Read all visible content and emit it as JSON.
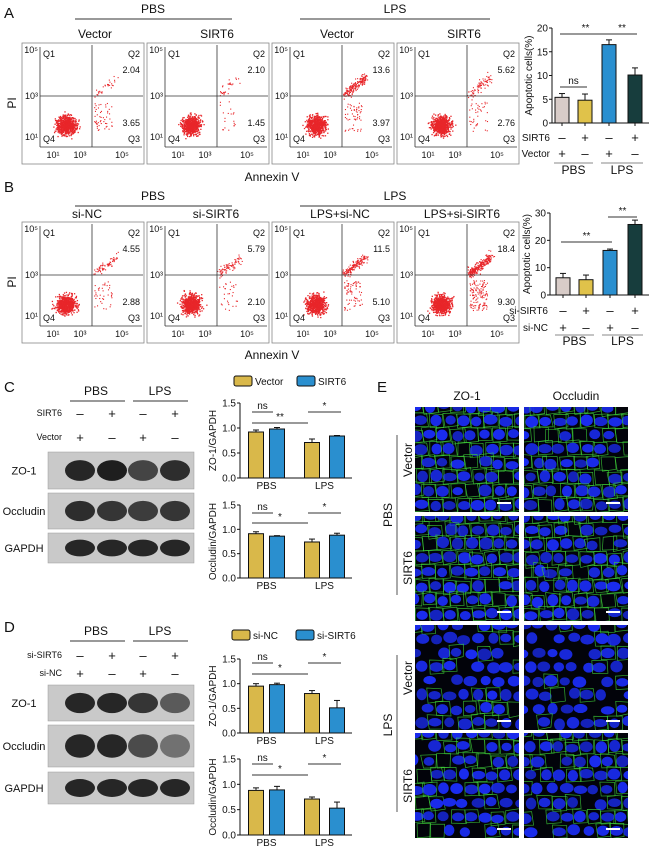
{
  "panel_labels": [
    "A",
    "B",
    "C",
    "D",
    "E"
  ],
  "panel_a": {
    "groups": [
      "PBS",
      "LPS"
    ],
    "conditions": [
      "Vector",
      "SIRT6",
      "Vector",
      "SIRT6"
    ],
    "y_label": "PI",
    "x_label": "Annexin V",
    "quadrant_labels": [
      "Q1",
      "Q2",
      "Q3",
      "Q4"
    ],
    "x_ticks": [
      "10¹",
      "10³",
      "10⁵"
    ],
    "y_ticks": [
      "10⁵",
      "10³",
      "10¹"
    ],
    "plots": [
      {
        "q2": "2.04",
        "q3": "3.65"
      },
      {
        "q2": "2.10",
        "q3": "1.45"
      },
      {
        "q2": "13.6",
        "q3": "3.97"
      },
      {
        "q2": "5.62",
        "q3": "2.76"
      }
    ],
    "dot_color": "#e8262a"
  },
  "panel_b": {
    "groups": [
      "PBS",
      "LPS"
    ],
    "conditions": [
      "si-NC",
      "si-SIRT6",
      "LPS+si-NC",
      "LPS+si-SIRT6"
    ],
    "y_label": "PI",
    "x_label": "Annexin V",
    "quadrant_labels": [
      "Q1",
      "Q2",
      "Q3",
      "Q4"
    ],
    "x_ticks": [
      "10¹",
      "10³",
      "10⁵"
    ],
    "y_ticks": [
      "10⁵",
      "10³",
      "10¹"
    ],
    "plots": [
      {
        "q2": "4.55",
        "q3": "2.88"
      },
      {
        "q2": "5.79",
        "q3": "2.10"
      },
      {
        "q2": "11.5",
        "q3": "5.10"
      },
      {
        "q2": "18.4",
        "q3": "9.30"
      }
    ],
    "dot_color": "#e8262a"
  },
  "panel_c": {
    "groups": [
      "PBS",
      "LPS"
    ],
    "rows": [
      {
        "label": "SIRT6",
        "signs": [
          "–",
          "+",
          "–",
          "+"
        ]
      },
      {
        "label": "Vector",
        "signs": [
          "+",
          "–",
          "+",
          "–"
        ]
      }
    ],
    "blots": [
      "ZO-1",
      "Occludin",
      "GAPDH"
    ]
  },
  "panel_d": {
    "groups": [
      "PBS",
      "LPS"
    ],
    "rows": [
      {
        "label": "si-SIRT6",
        "signs": [
          "–",
          "+",
          "–",
          "+"
        ]
      },
      {
        "label": "si-NC",
        "signs": [
          "+",
          "–",
          "+",
          "–"
        ]
      }
    ],
    "blots": [
      "ZO-1",
      "Occludin",
      "GAPDH"
    ]
  },
  "panel_e": {
    "columns": [
      "ZO-1",
      "Occludin"
    ],
    "groups": [
      "PBS",
      "LPS"
    ],
    "rows": [
      "Vector",
      "SIRT6"
    ],
    "nucleus_color": "#1a2cf0",
    "junction_color": "#3fd23a"
  },
  "chart_data": [
    {
      "type": "bar",
      "ylabel": "Apoptotic cells(%)",
      "ylim": [
        0,
        20
      ],
      "yticks": [
        "0",
        "5",
        "10",
        "15",
        "20"
      ],
      "values": [
        5.4,
        4.8,
        16.5,
        10.1
      ],
      "errors": [
        0.8,
        1.3,
        1.0,
        1.5
      ],
      "colors": [
        "#d8ccc8",
        "#e0c24a",
        "#2a8fcf",
        "#173d3d"
      ],
      "treatments": [
        {
          "label": "SIRT6",
          "signs": [
            "–",
            "+",
            "–",
            "+"
          ]
        },
        {
          "label": "Vector",
          "signs": [
            "+",
            "–",
            "+",
            "–"
          ]
        }
      ],
      "groups": [
        "PBS",
        "LPS"
      ],
      "significance": [
        {
          "from": 0,
          "to": 1,
          "label": "ns"
        },
        {
          "from": 0,
          "to": 2,
          "label": "**"
        },
        {
          "from": 2,
          "to": 3,
          "label": "**"
        }
      ]
    },
    {
      "type": "bar",
      "ylabel": "Apoptotic cells(%)",
      "ylim": [
        0,
        30
      ],
      "yticks": [
        "0",
        "10",
        "20",
        "30"
      ],
      "values": [
        6.3,
        5.6,
        16.3,
        25.8
      ],
      "errors": [
        1.6,
        1.7,
        0.5,
        1.6
      ],
      "colors": [
        "#d8ccc8",
        "#e0c24a",
        "#2a8fcf",
        "#173d3d"
      ],
      "treatments": [
        {
          "label": "si-SIRT6",
          "signs": [
            "–",
            "+",
            "–",
            "+"
          ]
        },
        {
          "label": "si-NC",
          "signs": [
            "+",
            "–",
            "+",
            "–"
          ]
        }
      ],
      "groups": [
        "PBS",
        "LPS"
      ],
      "significance": [
        {
          "from": 0,
          "to": 2,
          "label": "**"
        },
        {
          "from": 2,
          "to": 3,
          "label": "**"
        }
      ]
    },
    {
      "type": "bar",
      "ylabel": "ZO-1/GAPDH",
      "ylim": [
        0,
        1.5
      ],
      "yticks": [
        "0.0",
        "0.5",
        "1.0",
        "1.5"
      ],
      "categories": [
        "PBS",
        "LPS"
      ],
      "series": [
        {
          "name": "Vector",
          "color": "#d9b84a",
          "values": [
            0.92,
            0.71
          ],
          "errors": [
            0.04,
            0.07
          ]
        },
        {
          "name": "SIRT6",
          "color": "#2a8fcf",
          "values": [
            0.98,
            0.84
          ],
          "errors": [
            0.03,
            0.01
          ]
        }
      ],
      "legend": "top",
      "significance": [
        {
          "from": 0,
          "to": 1,
          "label": "ns"
        },
        {
          "from": 0,
          "to": 2,
          "label": "**"
        },
        {
          "from": 2,
          "to": 3,
          "label": "*"
        }
      ]
    },
    {
      "type": "bar",
      "ylabel": "Occludin/GAPDH",
      "ylim": [
        0,
        1.5
      ],
      "yticks": [
        "0.0",
        "0.5",
        "1.0",
        "1.5"
      ],
      "categories": [
        "PBS",
        "LPS"
      ],
      "series": [
        {
          "name": "Vector",
          "color": "#d9b84a",
          "values": [
            0.91,
            0.74
          ],
          "errors": [
            0.04,
            0.06
          ]
        },
        {
          "name": "SIRT6",
          "color": "#2a8fcf",
          "values": [
            0.86,
            0.88
          ],
          "errors": [
            0.01,
            0.04
          ]
        }
      ],
      "significance": [
        {
          "from": 0,
          "to": 1,
          "label": "ns"
        },
        {
          "from": 0,
          "to": 2,
          "label": "*"
        },
        {
          "from": 2,
          "to": 3,
          "label": "*"
        }
      ]
    },
    {
      "type": "bar",
      "ylabel": "ZO-1/GAPDH",
      "ylim": [
        0,
        1.5
      ],
      "yticks": [
        "0.0",
        "0.5",
        "1.0",
        "1.5"
      ],
      "categories": [
        "PBS",
        "LPS"
      ],
      "series": [
        {
          "name": "si-NC",
          "color": "#d9b84a",
          "values": [
            0.95,
            0.8
          ],
          "errors": [
            0.05,
            0.06
          ]
        },
        {
          "name": "si-SIRT6",
          "color": "#2a8fcf",
          "values": [
            0.98,
            0.51
          ],
          "errors": [
            0.03,
            0.15
          ]
        }
      ],
      "legend": "top",
      "significance": [
        {
          "from": 0,
          "to": 1,
          "label": "ns"
        },
        {
          "from": 0,
          "to": 2,
          "label": "*"
        },
        {
          "from": 2,
          "to": 3,
          "label": "*"
        }
      ]
    },
    {
      "type": "bar",
      "ylabel": "Occludin/GAPDH",
      "ylim": [
        0,
        1.5
      ],
      "yticks": [
        "0.0",
        "0.5",
        "1.0",
        "1.5"
      ],
      "categories": [
        "PBS",
        "LPS"
      ],
      "series": [
        {
          "name": "si-NC",
          "color": "#d9b84a",
          "values": [
            0.88,
            0.71
          ],
          "errors": [
            0.05,
            0.04
          ]
        },
        {
          "name": "si-SIRT6",
          "color": "#2a8fcf",
          "values": [
            0.89,
            0.53
          ],
          "errors": [
            0.07,
            0.12
          ]
        }
      ],
      "significance": [
        {
          "from": 0,
          "to": 1,
          "label": "ns"
        },
        {
          "from": 0,
          "to": 2,
          "label": "*"
        },
        {
          "from": 2,
          "to": 3,
          "label": "*"
        }
      ]
    }
  ]
}
